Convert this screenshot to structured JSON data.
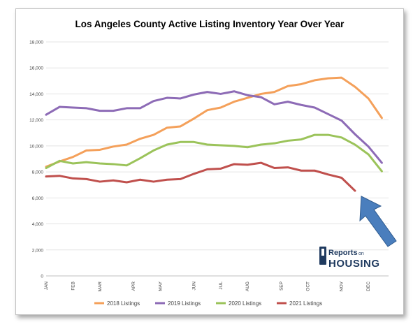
{
  "chart_data": {
    "type": "line",
    "title": "Los Angeles County Active Listing Inventory Year Over Year",
    "xlabel": "",
    "ylabel": "",
    "ylim": [
      0,
      18000
    ],
    "y_ticks": [
      "0",
      "2,000",
      "4,000",
      "6,000",
      "8,000",
      "10,000",
      "12,000",
      "14,000",
      "16,000",
      "18,000"
    ],
    "x_tick_labels": [
      "JAN",
      "FEB",
      "MAR",
      "APR",
      "MAY",
      "JUN",
      "JUL",
      "AUG",
      "SEP",
      "OCT",
      "NOV",
      "DEC"
    ],
    "x_tick_weeks": [
      0,
      4,
      8,
      13,
      17,
      22,
      26,
      30,
      35,
      39,
      44,
      48
    ],
    "legend_position": "bottom",
    "grid": true,
    "series": [
      {
        "name": "2018 Listings",
        "color": "#F4A05A",
        "values": [
          8400,
          8800,
          9150,
          9650,
          9700,
          9950,
          10100,
          10550,
          10850,
          11400,
          11500,
          12100,
          12750,
          12950,
          13400,
          13700,
          14000,
          14150,
          14600,
          14750,
          15050,
          15200,
          15250,
          14550,
          13650,
          12150
        ]
      },
      {
        "name": "2019 Listings",
        "color": "#8D6BB6",
        "values": [
          12400,
          13000,
          12950,
          12900,
          12700,
          12700,
          12900,
          12900,
          13450,
          13700,
          13650,
          13950,
          14150,
          14000,
          14200,
          13900,
          13750,
          13200,
          13400,
          13150,
          12950,
          12450,
          11950,
          10900,
          9950,
          8700
        ]
      },
      {
        "name": "2020 Listings",
        "color": "#9BC35A",
        "values": [
          8300,
          8850,
          8650,
          8750,
          8650,
          8600,
          8500,
          9050,
          9650,
          10100,
          10300,
          10300,
          10100,
          10050,
          10000,
          9900,
          10100,
          10200,
          10400,
          10500,
          10850,
          10850,
          10650,
          10100,
          9350,
          8050
        ]
      },
      {
        "name": "2021 Listings",
        "color": "#C0504D",
        "values": [
          7650,
          7700,
          7500,
          7450,
          7250,
          7350,
          7200,
          7400,
          7250,
          7400,
          7450,
          7850,
          8200,
          8250,
          8600,
          8550,
          8700,
          8300,
          8350,
          8100,
          8100,
          7800,
          7550,
          6550
        ]
      }
    ],
    "logo_text": "ReportsonHOUSING"
  }
}
